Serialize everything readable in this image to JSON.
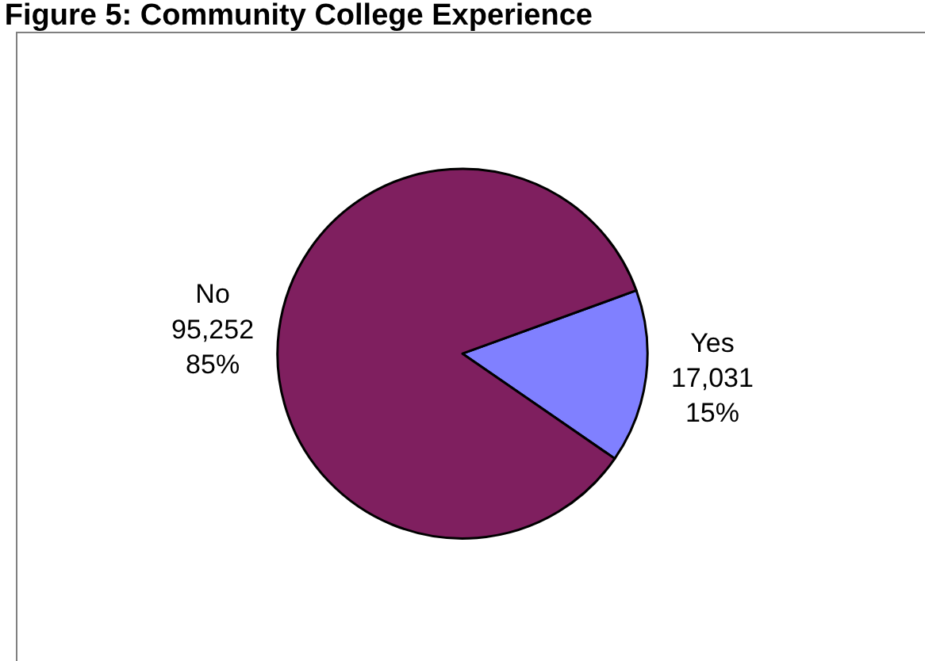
{
  "chart_data": {
    "type": "pie",
    "title": "Figure 5: Community College Experience",
    "categories": [
      "Yes",
      "No"
    ],
    "values": [
      17031,
      95252
    ],
    "colors": [
      "#8080ff",
      "#7f1f5f"
    ],
    "value_labels": [
      "17,031\n15%",
      "95,252\n85%"
    ],
    "legend": false
  }
}
